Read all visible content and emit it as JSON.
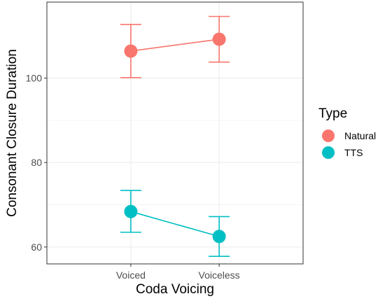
{
  "chart_data": {
    "type": "line",
    "title": "",
    "xlabel": "Coda Voicing",
    "ylabel": "Consonant Closure Duration",
    "categories": [
      "Voiced",
      "Voiceless"
    ],
    "ylim": [
      56,
      118
    ],
    "yticks": [
      60,
      80,
      100
    ],
    "grid": true,
    "legend": {
      "title": "Type",
      "placement": "right"
    },
    "series": [
      {
        "name": "Natural",
        "color": "#F8766D",
        "values": [
          106.4,
          109.2
        ],
        "lower": [
          100.1,
          103.8
        ],
        "upper": [
          112.7,
          114.6
        ]
      },
      {
        "name": "TTS",
        "color": "#00BFC4",
        "values": [
          68.4,
          62.5
        ],
        "lower": [
          63.5,
          57.8
        ],
        "upper": [
          73.4,
          67.2
        ]
      }
    ]
  }
}
